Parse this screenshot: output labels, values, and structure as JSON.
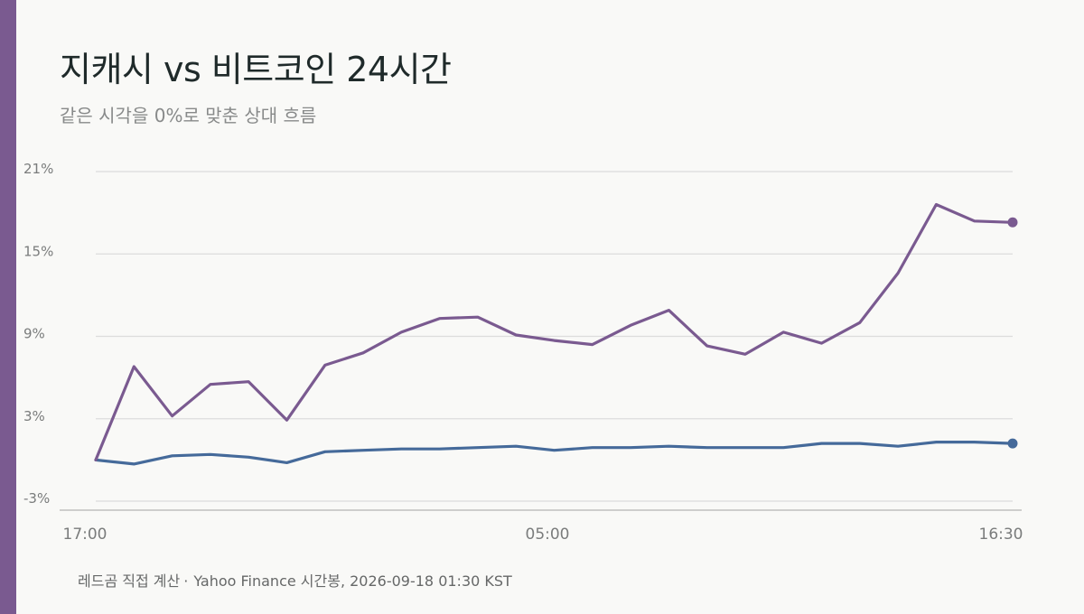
{
  "title": "지캐시 vs 비트코인 24시간",
  "subtitle": "같은 시각을 0%로 맞춘 상대 흐름",
  "source": {
    "author": "레드곰 직접 계산",
    "separator": "·",
    "detail": "Yahoo Finance 시간봉, 2026-09-18 01:30 KST"
  },
  "colors": {
    "accent": "#7a5a90",
    "zcash": "#7a5a90",
    "bitcoin": "#456a9a",
    "grid": "#dcdcdc",
    "axis": "#b4b4b4",
    "tick_text": "#7a7c7c"
  },
  "chart_data": {
    "type": "line",
    "title": "지캐시 vs 비트코인 24시간",
    "subtitle": "같은 시각을 0%로 맞춘 상대 흐름",
    "xlabel": "",
    "ylabel": "",
    "x_tick_labels": [
      "17:00",
      "05:00",
      "16:30"
    ],
    "y_ticks": [
      -3,
      3,
      9,
      15,
      21
    ],
    "y_tick_labels": [
      "-3%",
      "3%",
      "9%",
      "15%",
      "21%"
    ],
    "ylim": [
      -3,
      21
    ],
    "grid": "horizontal",
    "legend": "none",
    "series": [
      {
        "key": "zcash",
        "values": [
          0.0,
          6.8,
          3.2,
          5.5,
          5.7,
          2.9,
          6.9,
          7.8,
          9.3,
          10.3,
          10.4,
          9.1,
          8.7,
          8.4,
          9.8,
          10.9,
          8.3,
          7.7,
          9.3,
          8.5,
          10.0,
          13.6,
          18.6,
          17.4,
          17.3
        ]
      },
      {
        "key": "bitcoin",
        "values": [
          0.0,
          -0.3,
          0.3,
          0.4,
          0.2,
          -0.2,
          0.6,
          0.7,
          0.8,
          0.8,
          0.9,
          1.0,
          0.7,
          0.9,
          0.9,
          1.0,
          0.9,
          0.9,
          0.9,
          1.2,
          1.2,
          1.0,
          1.3,
          1.3,
          1.2
        ]
      }
    ]
  }
}
